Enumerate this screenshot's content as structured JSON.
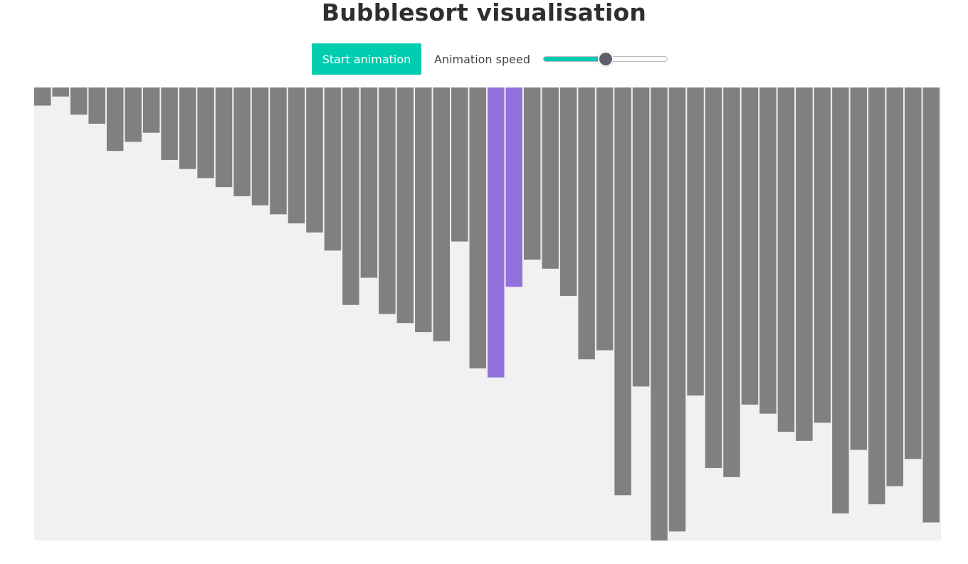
{
  "page": {
    "title": "Bubblesort visualisation"
  },
  "controls": {
    "start_label": "Start animation",
    "speed_label": "Animation speed",
    "speed_value": 0.5
  },
  "colors": {
    "accent": "#00cdb0",
    "bar": "#808080",
    "highlight": "#9370db",
    "chart_background": "#f1f1f1"
  },
  "chart_data": {
    "type": "bar",
    "values": [
      2,
      1,
      3,
      4,
      7,
      6,
      5,
      8,
      9,
      10,
      11,
      12,
      13,
      14,
      15,
      16,
      18,
      24,
      21,
      25,
      26,
      27,
      28,
      17,
      31,
      32,
      22,
      19,
      20,
      23,
      30,
      29,
      45,
      33,
      50,
      49,
      34,
      42,
      43,
      35,
      36,
      38,
      39,
      37,
      47,
      40,
      46,
      44,
      41,
      48
    ],
    "highlighted": [
      25,
      26
    ],
    "ylim": [
      0,
      50
    ]
  }
}
